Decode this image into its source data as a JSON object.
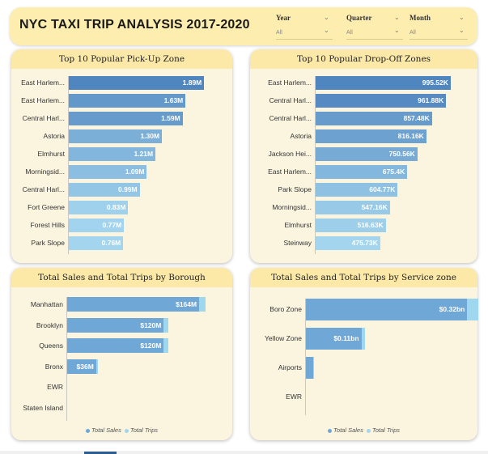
{
  "header": {
    "title": "NYC TAXI TRIP ANALYSIS 2017-2020",
    "slicers": [
      {
        "label": "Year",
        "value": "All"
      },
      {
        "label": "Quarter",
        "value": "All"
      },
      {
        "label": "Month",
        "value": "All"
      }
    ]
  },
  "colors": {
    "bar_dark": "#4f86bf",
    "bar_mid": "#6fa7d6",
    "bar_light": "#a4d5ef",
    "trips": "#9ed7ee",
    "panel_bg": "#fbf5e0",
    "panel_title_bg": "#fce9a8"
  },
  "chart_data": [
    {
      "type": "bar",
      "title": "Top 10 Popular Pick-Up Zone",
      "categories": [
        "East Harlem...",
        "East Harlem...",
        "Central Harl...",
        "Astoria",
        "Elmhurst",
        "Morningsid...",
        "Central Harl...",
        "Fort Greene",
        "Forest Hills",
        "Park Slope"
      ],
      "values": [
        1.89,
        1.63,
        1.59,
        1.3,
        1.21,
        1.09,
        0.99,
        0.83,
        0.77,
        0.76
      ],
      "labels": [
        "1.89M",
        "1.63M",
        "1.59M",
        "1.30M",
        "1.21M",
        "1.09M",
        "0.99M",
        "0.83M",
        "0.77M",
        "0.76M"
      ],
      "unit": "M",
      "xlim": [
        0,
        2.0
      ]
    },
    {
      "type": "bar",
      "title": "Top 10 Popular Drop-Off Zones",
      "categories": [
        "East Harlem...",
        "Central Harl...",
        "Central Harl...",
        "Astoria",
        "Jackson Hei...",
        "East Harlem...",
        "Park Slope",
        "Morningsid...",
        "Elmhurst",
        "Steinway"
      ],
      "values": [
        995.52,
        961.88,
        857.48,
        816.16,
        750.56,
        675.4,
        604.77,
        547.16,
        516.63,
        475.73
      ],
      "labels": [
        "995.52K",
        "961.88K",
        "857.48K",
        "816.16K",
        "750.56K",
        "675.4K",
        "604.77K",
        "547.16K",
        "516.63K",
        "475.73K"
      ],
      "unit": "K",
      "xlim": [
        0,
        1050
      ]
    },
    {
      "type": "bar",
      "title": "Total Sales and Total Trips by Borough",
      "categories": [
        "Manhattan",
        "Brooklyn",
        "Queens",
        "Bronx",
        "EWR",
        "Staten Island"
      ],
      "series": [
        {
          "name": "Total Sales",
          "values": [
            164,
            120,
            120,
            36,
            0,
            0
          ]
        },
        {
          "name": "Total Trips",
          "values": [
            8,
            6,
            6,
            2,
            0,
            0
          ]
        }
      ],
      "labels": [
        "$164M",
        "$120M",
        "$120M",
        "$36M",
        "",
        ""
      ],
      "xlim": [
        0,
        180
      ],
      "legend": "bottom"
    },
    {
      "type": "bar",
      "title": "Total Sales and Total Trips by Service zone",
      "categories": [
        "Boro Zone",
        "Yellow Zone",
        "Airports",
        "EWR"
      ],
      "series": [
        {
          "name": "Total Sales",
          "values": [
            0.32,
            0.11,
            0.015,
            0
          ]
        },
        {
          "name": "Total Trips",
          "values": [
            0.022,
            0.008,
            0.001,
            0
          ]
        }
      ],
      "labels": [
        "$0.32bn",
        "$0.11bn",
        "",
        ""
      ],
      "xlim": [
        0,
        0.35
      ],
      "legend": "bottom"
    }
  ]
}
